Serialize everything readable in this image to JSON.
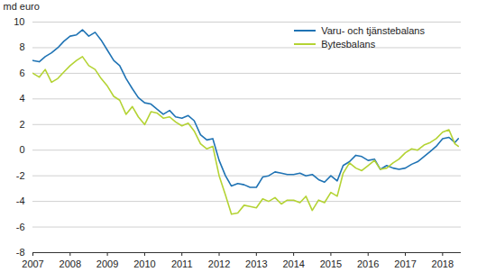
{
  "chart_data": {
    "type": "line",
    "y_label": "md euro",
    "x": [
      2007.0,
      2007.17,
      2007.33,
      2007.5,
      2007.67,
      2007.83,
      2008.0,
      2008.17,
      2008.33,
      2008.5,
      2008.67,
      2008.83,
      2009.0,
      2009.17,
      2009.33,
      2009.5,
      2009.67,
      2009.83,
      2010.0,
      2010.17,
      2010.33,
      2010.5,
      2010.67,
      2010.83,
      2011.0,
      2011.17,
      2011.33,
      2011.5,
      2011.67,
      2011.83,
      2012.0,
      2012.17,
      2012.33,
      2012.5,
      2012.67,
      2012.83,
      2013.0,
      2013.17,
      2013.33,
      2013.5,
      2013.67,
      2013.83,
      2014.0,
      2014.17,
      2014.33,
      2014.5,
      2014.67,
      2014.83,
      2015.0,
      2015.17,
      2015.33,
      2015.5,
      2015.67,
      2015.83,
      2016.0,
      2016.17,
      2016.33,
      2016.5,
      2016.67,
      2016.83,
      2017.0,
      2017.17,
      2017.33,
      2017.5,
      2017.67,
      2017.83,
      2018.0,
      2018.17,
      2018.33,
      2018.42
    ],
    "series": [
      {
        "name": "Varu- och tjänstebalans",
        "color": "#1f73b4",
        "values": [
          7.0,
          6.9,
          7.3,
          7.6,
          8.0,
          8.5,
          8.9,
          9.0,
          9.4,
          8.9,
          9.2,
          8.6,
          7.8,
          7.0,
          6.6,
          5.6,
          4.8,
          4.1,
          3.7,
          3.6,
          3.2,
          2.8,
          3.1,
          2.6,
          2.5,
          2.7,
          2.3,
          1.2,
          0.8,
          0.9,
          -0.8,
          -2.0,
          -2.8,
          -2.6,
          -2.7,
          -2.9,
          -2.9,
          -2.1,
          -2.0,
          -1.7,
          -1.8,
          -1.9,
          -1.9,
          -1.8,
          -2.0,
          -1.9,
          -2.3,
          -2.5,
          -2.0,
          -2.4,
          -1.2,
          -0.9,
          -0.4,
          -0.5,
          -0.8,
          -0.7,
          -1.5,
          -1.2,
          -1.4,
          -1.5,
          -1.4,
          -1.1,
          -0.9,
          -0.5,
          -0.1,
          0.3,
          0.9,
          1.0,
          0.6,
          0.9
        ]
      },
      {
        "name": "Bytesbalans",
        "color": "#b4d334",
        "values": [
          6.0,
          5.7,
          6.3,
          5.3,
          5.6,
          6.1,
          6.6,
          7.0,
          7.3,
          6.6,
          6.3,
          5.6,
          5.0,
          4.2,
          3.9,
          2.8,
          3.4,
          2.6,
          2.0,
          3.0,
          2.9,
          2.5,
          2.6,
          2.2,
          1.9,
          2.1,
          1.5,
          0.5,
          0.1,
          0.3,
          -2.0,
          -3.5,
          -5.0,
          -4.9,
          -4.3,
          -4.4,
          -4.5,
          -3.8,
          -4.0,
          -3.7,
          -4.2,
          -3.9,
          -3.9,
          -4.1,
          -3.6,
          -4.7,
          -3.9,
          -4.1,
          -3.3,
          -3.6,
          -1.8,
          -1.0,
          -1.4,
          -1.6,
          -1.2,
          -0.8,
          -1.5,
          -1.4,
          -1.0,
          -0.7,
          -0.2,
          0.1,
          0.0,
          0.4,
          0.6,
          0.9,
          1.4,
          1.6,
          0.5,
          0.3
        ]
      }
    ],
    "xlim": [
      2007,
      2018.5
    ],
    "xticks": [
      2007,
      2008,
      2009,
      2010,
      2011,
      2012,
      2013,
      2014,
      2015,
      2016,
      2017,
      2018
    ],
    "ylim": [
      -8,
      10
    ],
    "yticks": [
      -8,
      -6,
      -4,
      -2,
      0,
      2,
      4,
      6,
      8,
      10
    ],
    "grid": true,
    "legend": "top-right"
  }
}
